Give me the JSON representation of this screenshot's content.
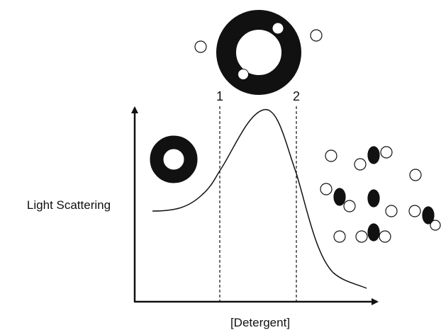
{
  "axes": {
    "y_label": "Light Scattering",
    "x_label": "[Detergent]"
  },
  "markers": [
    "1",
    "2"
  ]
}
